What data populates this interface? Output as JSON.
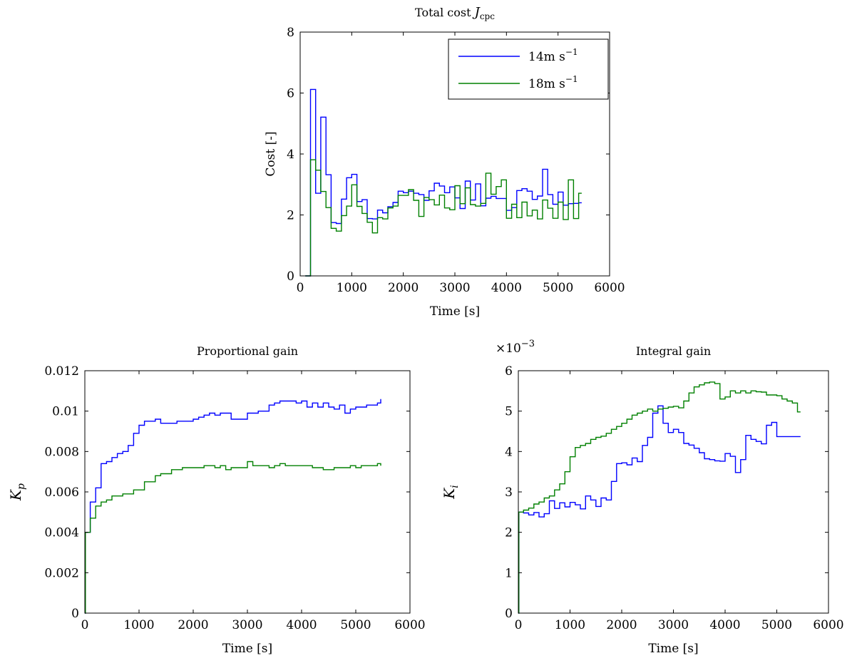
{
  "chart_data": [
    {
      "type": "line",
      "title_prefix": "Total cost",
      "title_symbol": "J",
      "title_subscript": "cpc",
      "xlabel": "Time [s]",
      "ylabel": "Cost [-]",
      "xlim": [
        0,
        6000
      ],
      "ylim": [
        0,
        8
      ],
      "xticks": [
        0,
        1000,
        2000,
        3000,
        4000,
        5000,
        6000
      ],
      "yticks": [
        0,
        2,
        4,
        6,
        8
      ],
      "ytick_labels": [
        "0",
        "2",
        "4",
        "6",
        "8"
      ],
      "grid": false,
      "legend": "top-right",
      "series": [
        {
          "name": "14m s",
          "name_superscript": "−1",
          "color": "#0000ff",
          "x": [
            100,
            200,
            300,
            400,
            500,
            600,
            700,
            800,
            900,
            1000,
            1100,
            1200,
            1300,
            1400,
            1500,
            1600,
            1700,
            1800,
            1900,
            2000,
            2100,
            2200,
            2300,
            2400,
            2500,
            2600,
            2700,
            2800,
            2900,
            3000,
            3100,
            3200,
            3300,
            3400,
            3500,
            3600,
            3700,
            3800,
            3900,
            4000,
            4100,
            4200,
            4300,
            4400,
            4500,
            4600,
            4700,
            4800,
            4900,
            5000,
            5100,
            5200,
            5300,
            5400,
            5460
          ],
          "y": [
            0,
            6.12,
            2.71,
            5.21,
            3.32,
            1.75,
            1.72,
            2.52,
            3.22,
            3.33,
            2.44,
            2.5,
            1.88,
            1.87,
            2.16,
            2.07,
            2.27,
            2.41,
            2.78,
            2.73,
            2.78,
            2.71,
            2.67,
            2.48,
            2.79,
            3.04,
            2.95,
            2.73,
            2.92,
            2.56,
            2.21,
            3.11,
            2.49,
            3.02,
            2.3,
            2.55,
            2.61,
            2.54,
            2.54,
            2.15,
            2.24,
            2.8,
            2.86,
            2.78,
            2.51,
            2.62,
            3.5,
            2.67,
            2.35,
            2.75,
            2.32,
            2.37,
            2.38,
            2.4,
            2.4
          ]
        },
        {
          "name": "18m s",
          "name_superscript": "−1",
          "color": "#008000",
          "x": [
            100,
            200,
            300,
            400,
            500,
            600,
            700,
            800,
            900,
            1000,
            1100,
            1200,
            1300,
            1400,
            1500,
            1600,
            1700,
            1800,
            1900,
            2000,
            2100,
            2200,
            2300,
            2400,
            2500,
            2600,
            2700,
            2800,
            2900,
            3000,
            3100,
            3200,
            3300,
            3400,
            3500,
            3600,
            3700,
            3800,
            3900,
            4000,
            4100,
            4200,
            4300,
            4400,
            4500,
            4600,
            4700,
            4800,
            4900,
            5000,
            5100,
            5200,
            5300,
            5400,
            5460
          ],
          "y": [
            0,
            3.81,
            3.47,
            2.77,
            2.24,
            1.56,
            1.47,
            1.98,
            2.29,
            2.99,
            2.28,
            2.05,
            1.76,
            1.41,
            1.91,
            1.87,
            2.23,
            2.29,
            2.64,
            2.64,
            2.83,
            2.48,
            1.95,
            2.57,
            2.5,
            2.33,
            2.65,
            2.23,
            2.17,
            2.96,
            2.37,
            2.89,
            2.34,
            2.29,
            2.38,
            3.37,
            2.68,
            2.93,
            3.15,
            1.89,
            2.35,
            1.91,
            2.42,
            1.97,
            2.16,
            1.87,
            2.49,
            2.22,
            1.89,
            2.42,
            1.85,
            3.15,
            1.88,
            2.71,
            2.71
          ]
        }
      ]
    },
    {
      "type": "line",
      "title": "Proportional gain",
      "xlabel": "Time [s]",
      "ylabel_symbol": "K",
      "ylabel_subscript": "p",
      "xlim": [
        0,
        6000
      ],
      "ylim": [
        0,
        0.012
      ],
      "xticks": [
        0,
        1000,
        2000,
        3000,
        4000,
        5000,
        6000
      ],
      "yticks": [
        0,
        0.002,
        0.004,
        0.006,
        0.008,
        0.01,
        0.012
      ],
      "ytick_labels": [
        "0",
        "0.002",
        "0.004",
        "0.006",
        "0.008",
        "0.01",
        "0.012"
      ],
      "grid": false,
      "series": [
        {
          "color": "#0000ff",
          "x": [
            0,
            10,
            100,
            200,
            300,
            400,
            500,
            600,
            700,
            800,
            900,
            1000,
            1100,
            1200,
            1300,
            1400,
            1500,
            1600,
            1700,
            1800,
            1900,
            2000,
            2100,
            2200,
            2300,
            2400,
            2500,
            2600,
            2700,
            2800,
            2900,
            3000,
            3100,
            3200,
            3300,
            3400,
            3500,
            3600,
            3700,
            3800,
            3900,
            4000,
            4100,
            4200,
            4300,
            4400,
            4500,
            4600,
            4700,
            4800,
            4900,
            5000,
            5100,
            5200,
            5300,
            5400,
            5460
          ],
          "y": [
            0,
            0.004,
            0.0055,
            0.0062,
            0.0074,
            0.0075,
            0.0077,
            0.0079,
            0.008,
            0.0083,
            0.0089,
            0.0093,
            0.0095,
            0.0095,
            0.0096,
            0.0094,
            0.0094,
            0.0094,
            0.0095,
            0.0095,
            0.0095,
            0.0096,
            0.0097,
            0.0098,
            0.0099,
            0.0098,
            0.0099,
            0.0099,
            0.0096,
            0.0096,
            0.0096,
            0.0099,
            0.0099,
            0.01,
            0.01,
            0.0103,
            0.0104,
            0.0105,
            0.0105,
            0.0105,
            0.0104,
            0.0105,
            0.0102,
            0.0104,
            0.0102,
            0.0104,
            0.0102,
            0.0101,
            0.0103,
            0.0099,
            0.0101,
            0.0102,
            0.0102,
            0.0103,
            0.0103,
            0.0104,
            0.0106
          ]
        },
        {
          "color": "#008000",
          "x": [
            0,
            10,
            100,
            200,
            300,
            400,
            500,
            600,
            700,
            800,
            900,
            1000,
            1100,
            1200,
            1300,
            1400,
            1500,
            1600,
            1700,
            1800,
            1900,
            2000,
            2100,
            2200,
            2300,
            2400,
            2500,
            2600,
            2700,
            2800,
            2900,
            3000,
            3100,
            3200,
            3300,
            3400,
            3500,
            3600,
            3700,
            3800,
            3900,
            4000,
            4100,
            4200,
            4300,
            4400,
            4500,
            4600,
            4700,
            4800,
            4900,
            5000,
            5100,
            5200,
            5300,
            5400,
            5460
          ],
          "y": [
            0,
            0.004,
            0.0047,
            0.0053,
            0.0055,
            0.0056,
            0.0058,
            0.0058,
            0.0059,
            0.0059,
            0.0061,
            0.0061,
            0.0065,
            0.0065,
            0.0068,
            0.0069,
            0.0069,
            0.0071,
            0.0071,
            0.0072,
            0.0072,
            0.0072,
            0.0072,
            0.0073,
            0.0073,
            0.0072,
            0.0073,
            0.0071,
            0.0072,
            0.0072,
            0.0072,
            0.0075,
            0.0073,
            0.0073,
            0.0073,
            0.0072,
            0.0073,
            0.0074,
            0.0073,
            0.0073,
            0.0073,
            0.0073,
            0.0073,
            0.0072,
            0.0072,
            0.0071,
            0.0071,
            0.0072,
            0.0072,
            0.0072,
            0.0073,
            0.0072,
            0.0073,
            0.0073,
            0.0073,
            0.0074,
            0.0073
          ]
        }
      ]
    },
    {
      "type": "line",
      "title": "Integral gain",
      "xlabel": "Time [s]",
      "ylabel_symbol": "K",
      "ylabel_subscript": "i",
      "y_multiplier_base": "×10",
      "y_multiplier_exp": "−3",
      "xlim": [
        0,
        6000
      ],
      "ylim": [
        0,
        6
      ],
      "xticks": [
        0,
        1000,
        2000,
        3000,
        4000,
        5000,
        6000
      ],
      "yticks": [
        0,
        1,
        2,
        3,
        4,
        5,
        6
      ],
      "ytick_labels": [
        "0",
        "1",
        "2",
        "3",
        "4",
        "5",
        "6"
      ],
      "grid": false,
      "series": [
        {
          "color": "#0000ff",
          "x": [
            0,
            10,
            100,
            200,
            300,
            400,
            500,
            600,
            700,
            800,
            900,
            1000,
            1100,
            1200,
            1300,
            1400,
            1500,
            1600,
            1700,
            1800,
            1900,
            2000,
            2100,
            2200,
            2300,
            2400,
            2500,
            2600,
            2700,
            2800,
            2900,
            3000,
            3100,
            3200,
            3300,
            3400,
            3500,
            3600,
            3700,
            3800,
            3900,
            4000,
            4100,
            4200,
            4300,
            4400,
            4500,
            4600,
            4700,
            4800,
            4900,
            5000,
            5100,
            5200,
            5300,
            5400,
            5460
          ],
          "y": [
            0,
            2.5,
            2.48,
            2.43,
            2.49,
            2.38,
            2.46,
            2.78,
            2.59,
            2.73,
            2.63,
            2.74,
            2.68,
            2.58,
            2.9,
            2.8,
            2.64,
            2.85,
            2.8,
            3.26,
            3.7,
            3.72,
            3.67,
            3.84,
            3.75,
            4.15,
            4.35,
            4.95,
            5.13,
            4.7,
            4.47,
            4.55,
            4.47,
            4.2,
            4.16,
            4.08,
            3.97,
            3.82,
            3.8,
            3.77,
            3.76,
            3.95,
            3.88,
            3.48,
            3.8,
            4.4,
            4.3,
            4.25,
            4.19,
            4.65,
            4.72,
            4.37,
            4.37,
            4.37,
            4.37,
            4.37,
            4.37
          ]
        },
        {
          "color": "#008000",
          "x": [
            0,
            10,
            100,
            200,
            300,
            400,
            500,
            600,
            700,
            800,
            900,
            1000,
            1100,
            1200,
            1300,
            1400,
            1500,
            1600,
            1700,
            1800,
            1900,
            2000,
            2100,
            2200,
            2300,
            2400,
            2500,
            2600,
            2700,
            2800,
            2900,
            3000,
            3100,
            3200,
            3300,
            3400,
            3500,
            3600,
            3700,
            3800,
            3900,
            4000,
            4100,
            4200,
            4300,
            4400,
            4500,
            4600,
            4700,
            4800,
            4900,
            5000,
            5100,
            5200,
            5300,
            5400,
            5460
          ],
          "y": [
            0,
            2.5,
            2.55,
            2.6,
            2.7,
            2.75,
            2.85,
            2.9,
            3.05,
            3.2,
            3.5,
            3.87,
            4.1,
            4.15,
            4.2,
            4.3,
            4.35,
            4.38,
            4.45,
            4.55,
            4.62,
            4.7,
            4.8,
            4.9,
            4.95,
            5.0,
            5.05,
            5.0,
            5.05,
            5.07,
            5.1,
            5.12,
            5.08,
            5.25,
            5.45,
            5.6,
            5.65,
            5.7,
            5.72,
            5.68,
            5.3,
            5.35,
            5.5,
            5.45,
            5.5,
            5.45,
            5.5,
            5.48,
            5.47,
            5.4,
            5.4,
            5.38,
            5.3,
            5.25,
            5.2,
            4.98,
            4.98
          ]
        }
      ]
    }
  ]
}
